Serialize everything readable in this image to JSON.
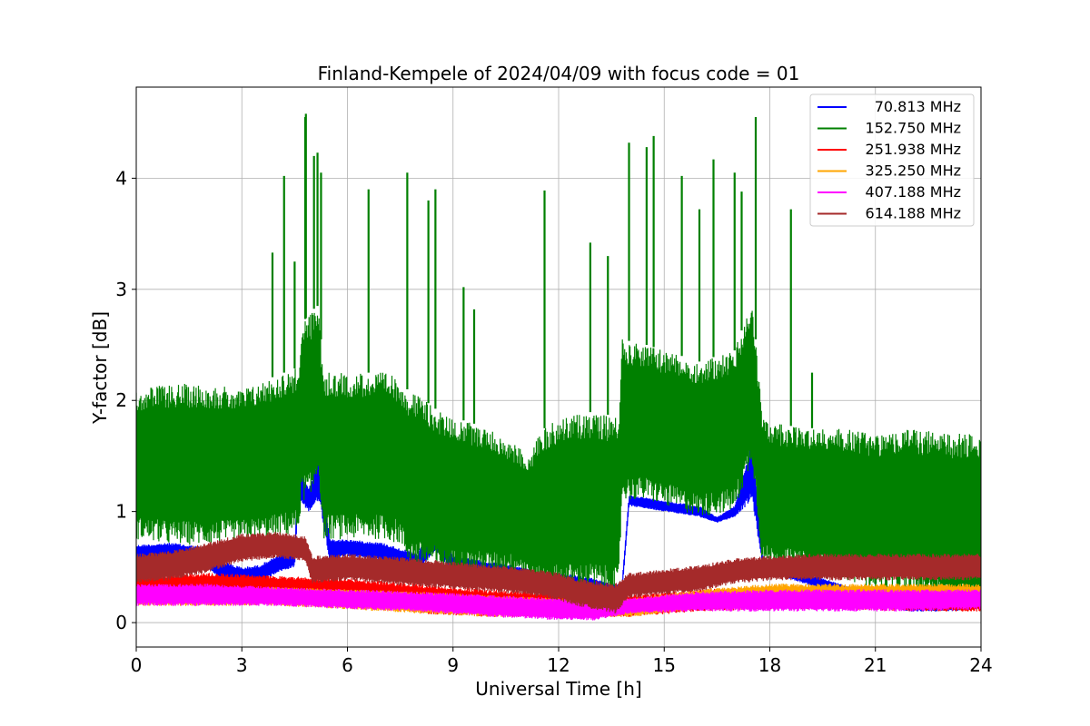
{
  "chart_data": {
    "type": "line",
    "title": "Finland-Kempele of 2024/04/09 with focus code = 01",
    "xlabel": "Universal Time [h]",
    "ylabel": "Y-factor [dB]",
    "xlim": [
      0,
      24
    ],
    "ylim": [
      -0.22,
      4.82
    ],
    "xticks": [
      0,
      3,
      6,
      9,
      12,
      15,
      18,
      21,
      24
    ],
    "yticks": [
      0,
      1,
      2,
      3,
      4
    ],
    "grid": true,
    "legend_position": "top-right",
    "series": [
      {
        "name": "70.813 MHz",
        "color": "#0000ff",
        "x": [
          0,
          1,
          2,
          2.5,
          3,
          3.5,
          4,
          4.5,
          4.6,
          4.9,
          5.2,
          5.5,
          6,
          7,
          8,
          8.5,
          9,
          10,
          11,
          11.5,
          12,
          13,
          13.5,
          13.8,
          14,
          15,
          16,
          16.5,
          17,
          17.5,
          17.8,
          18,
          19,
          20,
          21,
          22,
          23,
          24
        ],
        "low": [
          0.55,
          0.55,
          0.5,
          0.35,
          0.3,
          0.35,
          0.45,
          0.5,
          1.1,
          1.0,
          1.1,
          0.55,
          0.6,
          0.55,
          0.45,
          0.65,
          0.45,
          0.4,
          0.35,
          0.3,
          0.3,
          0.28,
          0.25,
          0.25,
          1.05,
          1.0,
          0.95,
          0.9,
          0.95,
          1.1,
          0.5,
          0.45,
          0.35,
          0.25,
          0.15,
          0.1,
          0.1,
          0.12
        ],
        "high": [
          0.7,
          0.72,
          0.68,
          0.55,
          0.5,
          0.52,
          0.6,
          0.65,
          1.45,
          1.2,
          1.55,
          0.75,
          0.75,
          0.72,
          0.62,
          0.95,
          0.6,
          0.55,
          0.5,
          0.45,
          0.45,
          0.4,
          0.35,
          0.35,
          1.15,
          1.1,
          1.05,
          0.95,
          1.05,
          1.65,
          0.6,
          0.55,
          0.45,
          0.35,
          0.25,
          0.2,
          0.2,
          0.22
        ]
      },
      {
        "name": "152.750 MHz",
        "color": "#008000",
        "x": [
          0,
          1,
          2,
          3,
          3.8,
          4.6,
          4.7,
          5.0,
          5.1,
          5.2,
          5.3,
          6,
          7,
          7.5,
          7.7,
          8,
          8.4,
          8.6,
          9,
          10,
          11,
          11.2,
          11.4,
          12,
          13,
          13.7,
          13.8,
          14.5,
          15,
          16,
          17,
          17.5,
          17.8,
          18,
          19,
          20,
          21,
          22,
          23,
          24
        ],
        "low": [
          0.75,
          0.7,
          0.7,
          0.72,
          0.75,
          0.8,
          1.1,
          1.1,
          1.3,
          1.3,
          0.75,
          0.75,
          0.75,
          0.7,
          0.55,
          0.5,
          0.5,
          0.45,
          0.45,
          0.45,
          0.45,
          0.35,
          0.3,
          0.3,
          0.3,
          0.25,
          1.1,
          1.1,
          1.05,
          0.95,
          1.0,
          1.45,
          0.5,
          0.5,
          0.45,
          0.4,
          0.3,
          0.25,
          0.15,
          0.1
        ],
        "high": [
          2.1,
          2.15,
          2.15,
          2.1,
          2.2,
          2.3,
          2.7,
          2.8,
          2.85,
          2.85,
          2.25,
          2.25,
          2.25,
          2.2,
          2.1,
          2.05,
          1.95,
          1.9,
          1.85,
          1.75,
          1.55,
          1.5,
          1.7,
          1.85,
          1.9,
          1.85,
          2.55,
          2.5,
          2.45,
          2.35,
          2.45,
          2.9,
          1.85,
          1.8,
          1.75,
          1.75,
          1.7,
          1.75,
          1.7,
          1.7
        ],
        "spike_x": [
          3.87,
          4.2,
          4.5,
          4.8,
          4.82,
          5.05,
          5.15,
          5.25,
          6.6,
          7.7,
          8.3,
          8.5,
          9.3,
          9.6,
          11.6,
          12.9,
          13.4,
          14.0,
          14.5,
          14.7,
          15.5,
          16.0,
          16.4,
          17.0,
          17.2,
          17.6,
          18.6,
          19.2
        ],
        "spike_y": [
          3.33,
          4.02,
          3.25,
          4.55,
          4.58,
          4.2,
          4.23,
          4.05,
          3.9,
          4.05,
          3.8,
          3.9,
          3.02,
          2.82,
          3.89,
          3.42,
          3.3,
          4.32,
          4.28,
          4.38,
          4.02,
          3.72,
          4.17,
          4.05,
          3.88,
          4.55,
          3.72,
          2.25
        ]
      },
      {
        "name": "251.938 MHz",
        "color": "#ff0000",
        "x": [
          0,
          2,
          4,
          6,
          8,
          10,
          12,
          14,
          16,
          18,
          20,
          22,
          24
        ],
        "low": [
          0.2,
          0.22,
          0.22,
          0.18,
          0.08,
          0.05,
          0.05,
          0.05,
          0.1,
          0.12,
          0.12,
          0.1,
          0.1
        ],
        "high": [
          0.42,
          0.45,
          0.42,
          0.4,
          0.35,
          0.3,
          0.28,
          0.25,
          0.3,
          0.32,
          0.32,
          0.3,
          0.3
        ]
      },
      {
        "name": "325.250 MHz",
        "color": "#ffa500",
        "x": [
          0,
          2,
          4,
          6,
          8,
          10,
          12,
          14,
          16,
          18,
          20,
          22,
          24
        ],
        "low": [
          0.15,
          0.15,
          0.15,
          0.12,
          0.08,
          0.05,
          0.05,
          0.05,
          0.12,
          0.15,
          0.15,
          0.15,
          0.15
        ],
        "high": [
          0.32,
          0.32,
          0.32,
          0.3,
          0.28,
          0.25,
          0.22,
          0.22,
          0.3,
          0.35,
          0.35,
          0.35,
          0.35
        ]
      },
      {
        "name": "407.188 MHz",
        "color": "#ff00ff",
        "x": [
          0,
          2,
          4,
          6,
          8,
          10,
          12,
          13,
          14,
          16,
          18,
          20,
          22,
          24
        ],
        "low": [
          0.15,
          0.15,
          0.15,
          0.12,
          0.1,
          0.05,
          0.02,
          0.02,
          0.08,
          0.1,
          0.1,
          0.1,
          0.1,
          0.12
        ],
        "high": [
          0.35,
          0.35,
          0.32,
          0.3,
          0.28,
          0.25,
          0.22,
          0.2,
          0.22,
          0.28,
          0.3,
          0.3,
          0.3,
          0.3
        ]
      },
      {
        "name": "614.188 MHz",
        "color": "#a52a2a",
        "x": [
          0,
          1,
          2,
          3,
          4,
          4.8,
          5.0,
          6,
          7,
          8,
          9,
          10,
          11,
          12,
          12.5,
          13,
          13.6,
          14,
          15,
          16,
          17,
          18,
          19,
          20,
          21,
          22,
          23,
          24
        ],
        "low": [
          0.35,
          0.38,
          0.45,
          0.55,
          0.58,
          0.55,
          0.35,
          0.38,
          0.35,
          0.32,
          0.3,
          0.28,
          0.25,
          0.2,
          0.15,
          0.12,
          0.08,
          0.22,
          0.25,
          0.28,
          0.35,
          0.38,
          0.38,
          0.38,
          0.38,
          0.38,
          0.38,
          0.38
        ],
        "high": [
          0.62,
          0.65,
          0.72,
          0.8,
          0.82,
          0.78,
          0.6,
          0.62,
          0.6,
          0.58,
          0.55,
          0.52,
          0.5,
          0.45,
          0.4,
          0.38,
          0.35,
          0.45,
          0.48,
          0.52,
          0.58,
          0.6,
          0.62,
          0.62,
          0.62,
          0.62,
          0.62,
          0.62
        ]
      }
    ]
  }
}
